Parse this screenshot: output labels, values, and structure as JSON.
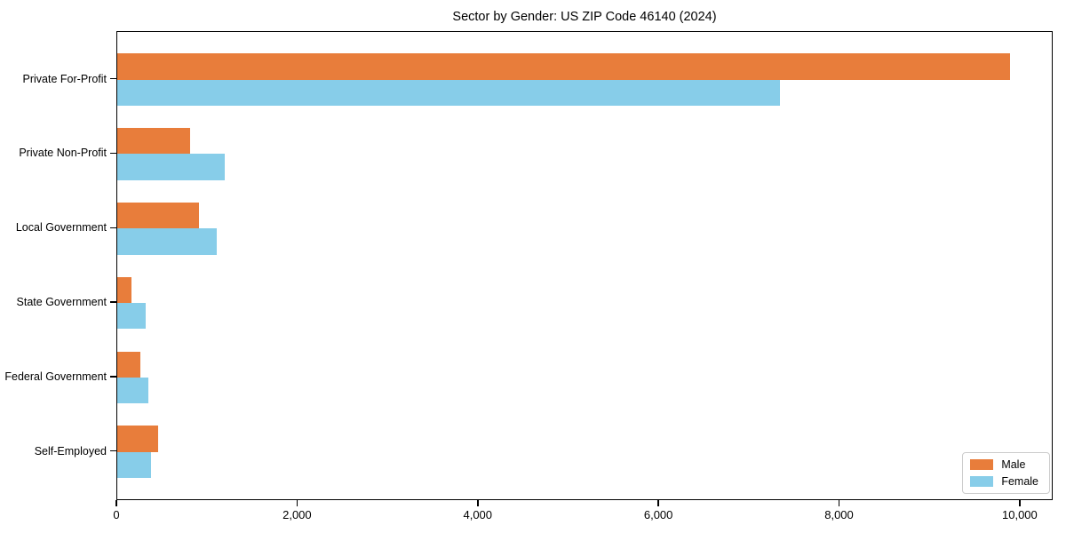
{
  "chart_data": {
    "type": "bar",
    "orientation": "horizontal",
    "title": "Sector by Gender: US ZIP Code 46140 (2024)",
    "categories": [
      "Private For-Profit",
      "Private Non-Profit",
      "Local Government",
      "State Government",
      "Federal Government",
      "Self-Employed"
    ],
    "series": [
      {
        "name": "Male",
        "color": "#e87d3b",
        "values": [
          9880,
          805,
          905,
          155,
          255,
          450
        ]
      },
      {
        "name": "Female",
        "color": "#87cde9",
        "values": [
          7340,
          1190,
          1100,
          310,
          345,
          375
        ]
      }
    ],
    "xlabel": "",
    "ylabel": "",
    "xlim": [
      0,
      10365
    ],
    "xticks": [
      0,
      2000,
      4000,
      6000,
      8000,
      10000
    ],
    "xtick_labels": [
      "0",
      "2,000",
      "4,000",
      "6,000",
      "8,000",
      "10,000"
    ],
    "grid": false,
    "legend": {
      "position": "lower right"
    },
    "colors": {
      "spine": "#000000",
      "background": "#ffffff"
    }
  }
}
